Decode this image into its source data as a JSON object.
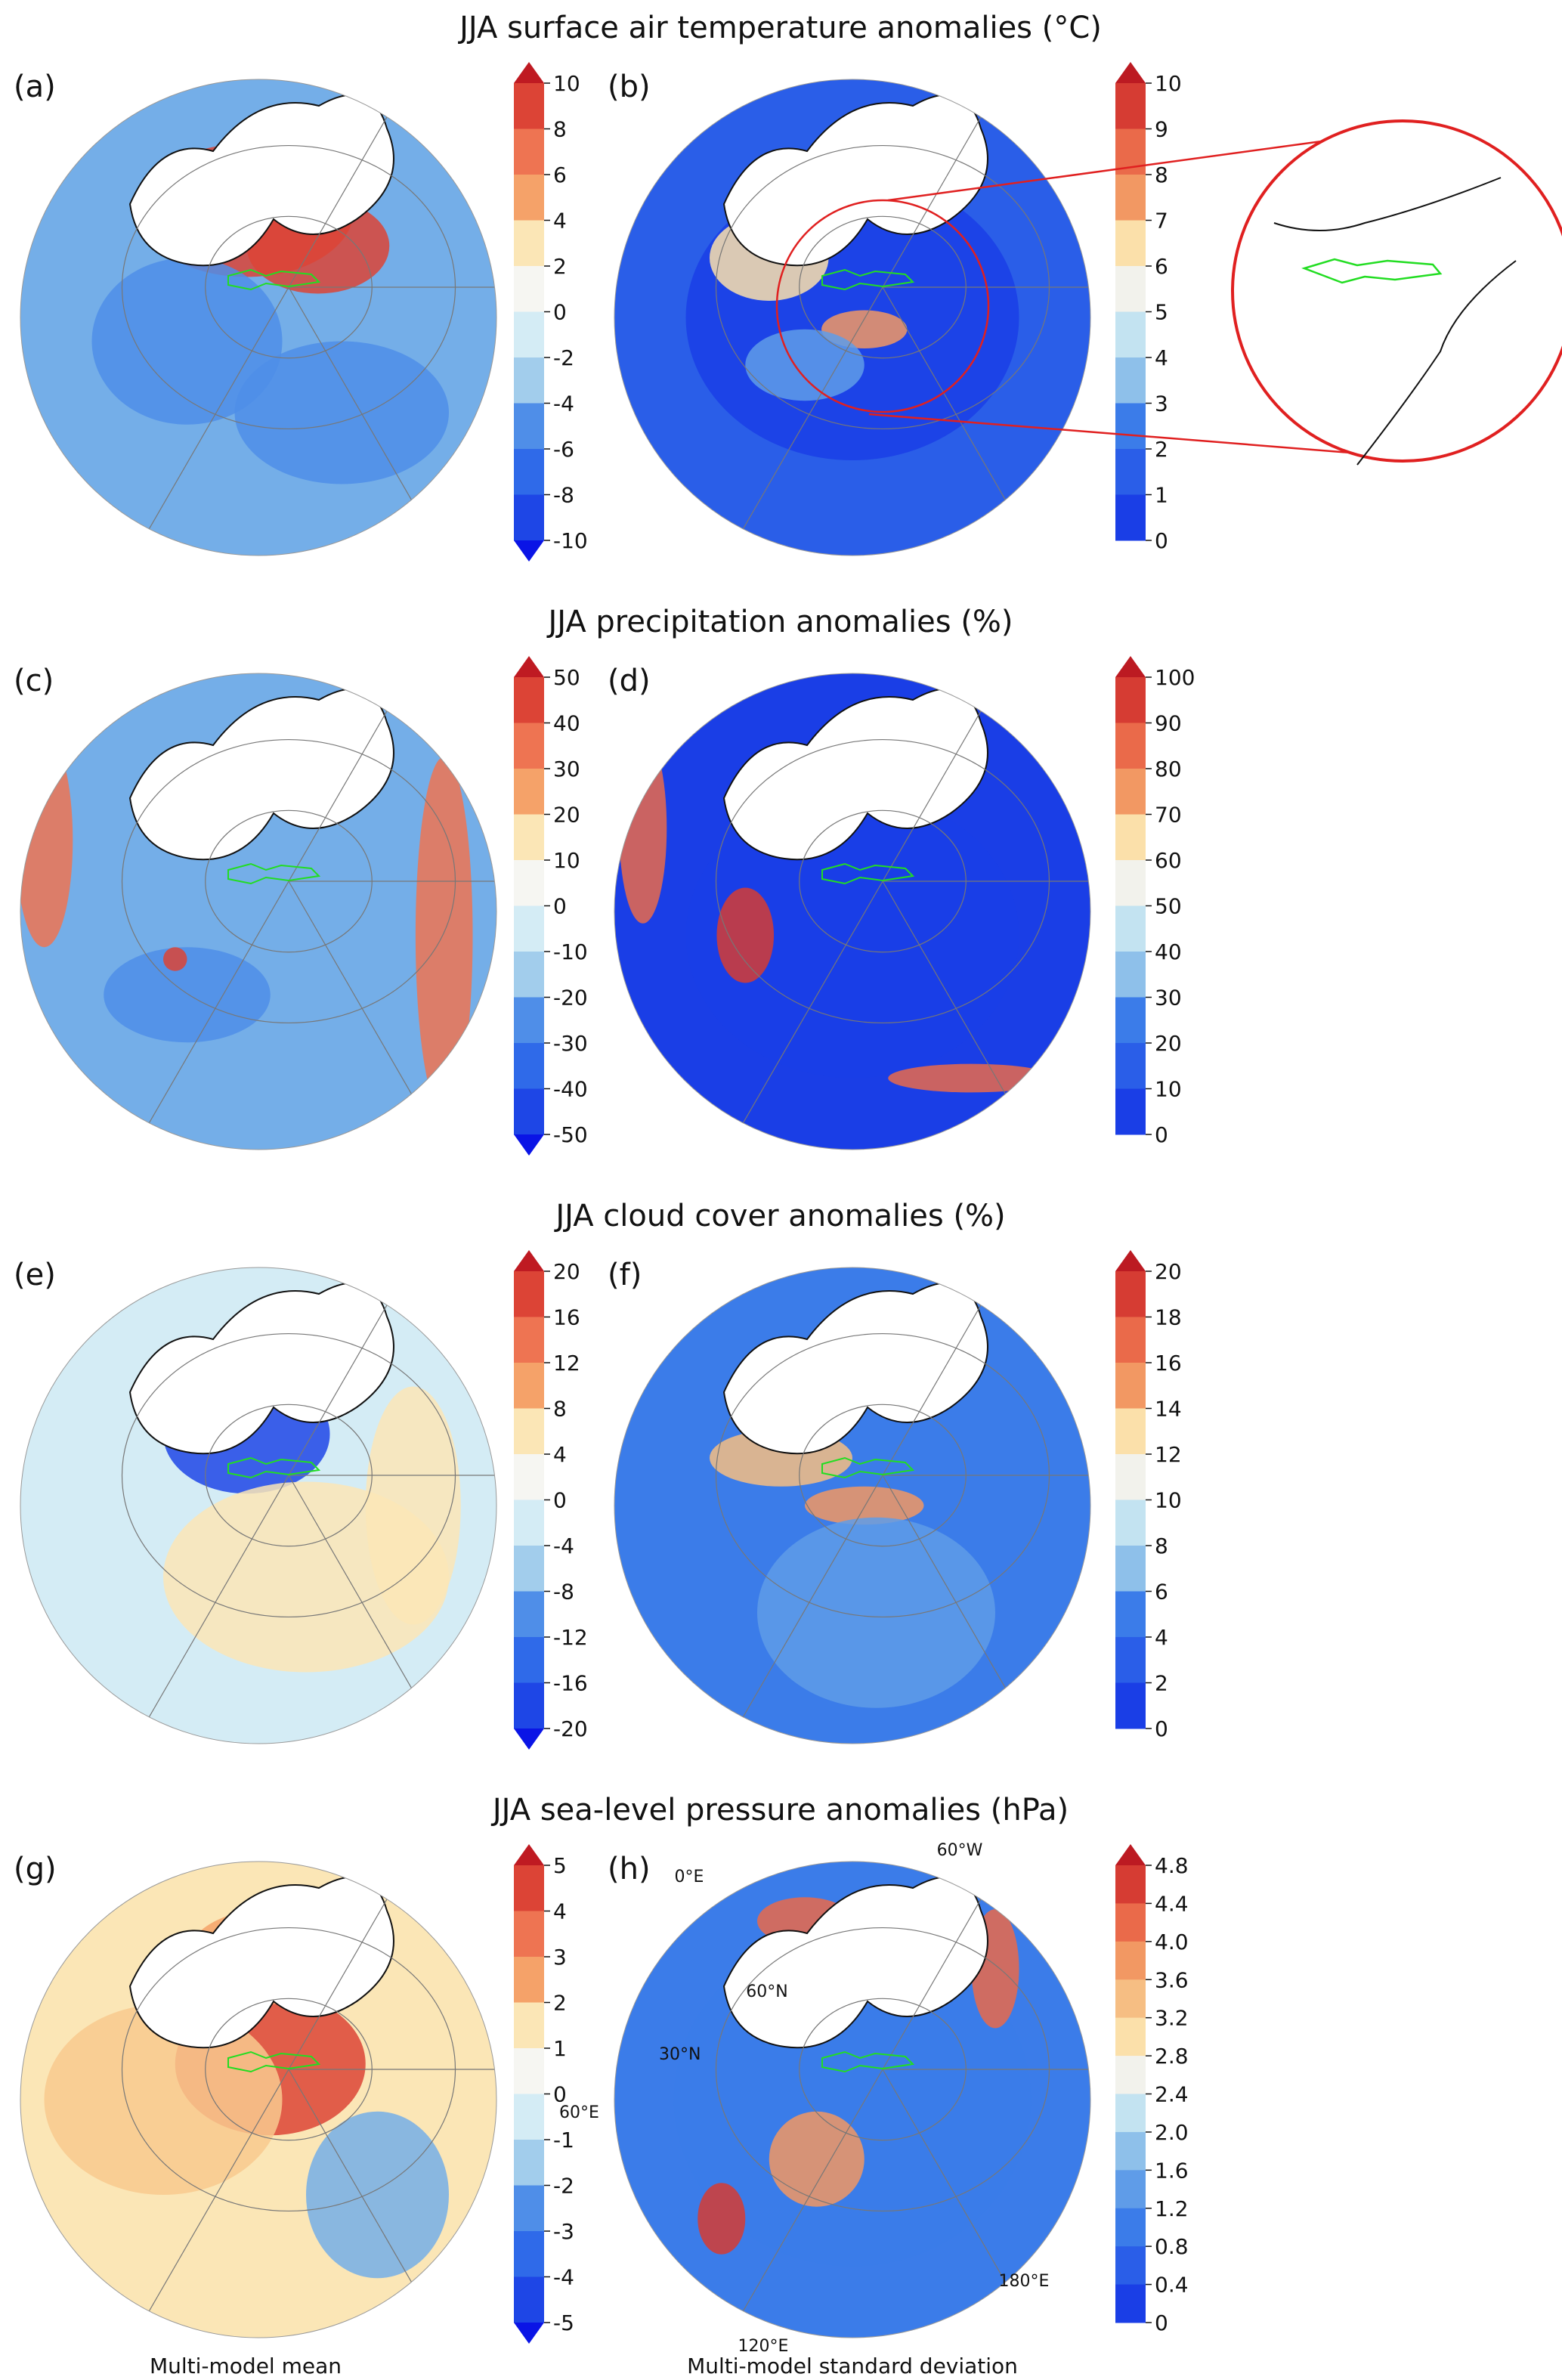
{
  "figure": {
    "footer_left": "Multi-model mean",
    "footer_right": "Multi-model standard deviation"
  },
  "diverging_colors": [
    "#0a14e6",
    "#1e46e6",
    "#2f6ae9",
    "#4f8ee8",
    "#74aee8",
    "#a2cdec",
    "#d4ecf5",
    "#f6f6f2",
    "#fbe6b6",
    "#f8c98e",
    "#f5a269",
    "#ee7452",
    "#dc4436",
    "#bf1a22"
  ],
  "sequential_colors": [
    "#0a14e6",
    "#1a3ee6",
    "#2a5ee8",
    "#3b7ce9",
    "#5f9ce8",
    "#8ec0ea",
    "#c3e3f1",
    "#f2f2ec",
    "#fbe0aa",
    "#f6be83",
    "#f29863",
    "#ea6a4a",
    "#d63c33",
    "#bc1a22"
  ],
  "chart_data": [
    {
      "type": "heatmap",
      "title": "JJA surface air temperature anomalies (°C)",
      "panels": [
        {
          "label": "(a)",
          "statistic": "Multi-model mean",
          "colorbar": {
            "ticks": [
              "10",
              "8",
              "6",
              "4",
              "2",
              "0",
              "-2",
              "-4",
              "-6",
              "-8",
              "-10"
            ],
            "range": [
              -10,
              10
            ],
            "extend": "both"
          }
        },
        {
          "label": "(b)",
          "statistic": "Multi-model standard deviation",
          "colorbar": {
            "ticks": [
              "10",
              "9",
              "8",
              "7",
              "6",
              "5",
              "4",
              "3",
              "2",
              "1",
              "0"
            ],
            "range": [
              0,
              10
            ],
            "extend": "max"
          },
          "zoom_inset": true
        }
      ]
    },
    {
      "type": "heatmap",
      "title": "JJA precipitation anomalies (%)",
      "panels": [
        {
          "label": "(c)",
          "statistic": "Multi-model mean",
          "colorbar": {
            "ticks": [
              "50",
              "40",
              "30",
              "20",
              "10",
              "0",
              "-10",
              "-20",
              "-30",
              "-40",
              "-50"
            ],
            "range": [
              -50,
              50
            ],
            "extend": "both"
          }
        },
        {
          "label": "(d)",
          "statistic": "Multi-model standard deviation",
          "colorbar": {
            "ticks": [
              "100",
              "90",
              "80",
              "70",
              "60",
              "50",
              "40",
              "30",
              "20",
              "10",
              "0"
            ],
            "range": [
              0,
              100
            ],
            "extend": "max"
          }
        }
      ]
    },
    {
      "type": "heatmap",
      "title": "JJA cloud cover anomalies (%)",
      "panels": [
        {
          "label": "(e)",
          "statistic": "Multi-model mean",
          "colorbar": {
            "ticks": [
              "20",
              "16",
              "12",
              "8",
              "4",
              "0",
              "-4",
              "-8",
              "-12",
              "-16",
              "-20"
            ],
            "range": [
              -20,
              20
            ],
            "extend": "both"
          }
        },
        {
          "label": "(f)",
          "statistic": "Multi-model standard deviation",
          "colorbar": {
            "ticks": [
              "20",
              "18",
              "16",
              "14",
              "12",
              "10",
              "8",
              "6",
              "4",
              "2",
              "0"
            ],
            "range": [
              0,
              20
            ],
            "extend": "max"
          }
        }
      ]
    },
    {
      "type": "heatmap",
      "title": "JJA sea-level pressure anomalies (hPa)",
      "panels": [
        {
          "label": "(g)",
          "statistic": "Multi-model mean",
          "colorbar": {
            "ticks": [
              "5",
              "4",
              "3",
              "2",
              "1",
              "0",
              "-1",
              "-2",
              "-3",
              "-4",
              "-5"
            ],
            "range": [
              -5,
              5
            ],
            "extend": "both"
          }
        },
        {
          "label": "(h)",
          "statistic": "Multi-model standard deviation",
          "colorbar": {
            "ticks": [
              "4.8",
              "4.4",
              "4.0",
              "3.6",
              "3.2",
              "2.8",
              "2.4",
              "2.0",
              "1.6",
              "1.2",
              "0.8",
              "0.4",
              "0"
            ],
            "range": [
              0,
              4.8
            ],
            "extend": "max"
          },
          "graticule_labels": [
            "60°W",
            "0°E",
            "60°N",
            "30°N",
            "60°E",
            "180°E",
            "120°E"
          ]
        }
      ]
    }
  ]
}
